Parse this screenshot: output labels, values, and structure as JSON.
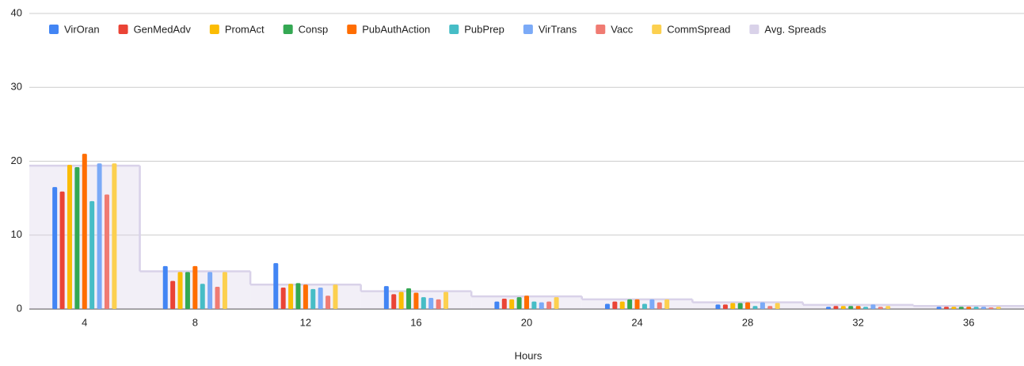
{
  "chart_data": {
    "type": "bar",
    "x_label": "Hours",
    "categories": [
      4,
      8,
      12,
      16,
      20,
      24,
      28,
      32,
      36
    ],
    "series": [
      {
        "name": "VirOran",
        "color": "#4285f4",
        "values": [
          16.5,
          5.8,
          6.2,
          3.1,
          1.0,
          0.7,
          0.6,
          0.3,
          0.3
        ]
      },
      {
        "name": "GenMedAdv",
        "color": "#ea4335",
        "values": [
          15.9,
          3.8,
          2.9,
          2.0,
          1.4,
          1.0,
          0.6,
          0.4,
          0.3
        ]
      },
      {
        "name": "PromAct",
        "color": "#fbbc04",
        "values": [
          19.5,
          5.0,
          3.4,
          2.3,
          1.3,
          1.0,
          0.8,
          0.4,
          0.3
        ]
      },
      {
        "name": "Consp",
        "color": "#34a853",
        "values": [
          19.2,
          5.0,
          3.5,
          2.8,
          1.6,
          1.3,
          0.8,
          0.4,
          0.3
        ]
      },
      {
        "name": "PubAuthAction",
        "color": "#ff6d01",
        "values": [
          21.0,
          5.8,
          3.3,
          2.2,
          1.8,
          1.3,
          0.9,
          0.4,
          0.3
        ]
      },
      {
        "name": "PubPrep",
        "color": "#46bdc6",
        "values": [
          14.6,
          3.4,
          2.7,
          1.6,
          1.0,
          0.7,
          0.4,
          0.3,
          0.3
        ]
      },
      {
        "name": "VirTrans",
        "color": "#7baaf7",
        "values": [
          19.7,
          5.0,
          2.9,
          1.5,
          0.9,
          1.3,
          0.9,
          0.6,
          0.3
        ]
      },
      {
        "name": "Vacc",
        "color": "#f07b72",
        "values": [
          15.5,
          3.0,
          1.8,
          1.3,
          1.0,
          0.9,
          0.4,
          0.3,
          0.2
        ]
      },
      {
        "name": "CommSpread",
        "color": "#fcd04f",
        "values": [
          19.7,
          5.0,
          3.3,
          2.3,
          1.6,
          1.3,
          0.8,
          0.4,
          0.3
        ]
      },
      {
        "name": "Avg. Spreads",
        "color": "#d9d2e9",
        "chart": "stepped-area",
        "values": [
          19.4,
          5.1,
          3.3,
          2.4,
          1.7,
          1.3,
          0.9,
          0.55,
          0.4
        ]
      }
    ],
    "ylim": [
      0,
      40
    ],
    "yticks": [
      0,
      10,
      20,
      30,
      40
    ],
    "grid": true,
    "legend": "top"
  }
}
